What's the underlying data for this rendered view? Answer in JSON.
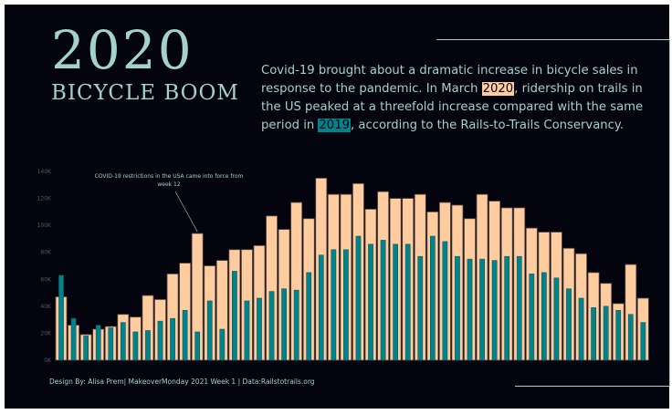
{
  "title": {
    "year": "2020",
    "subtitle": "BICYCLE BOOM"
  },
  "intro": {
    "part1": "Covid-19 brought about a dramatic increase in bicycle sales in response to the pandemic. In March ",
    "highlight1": "2020",
    "part2": ", ridership on trails in the US peaked at a threefold increase compared with the same period in ",
    "highlight2": "2019",
    "part3": ", according to the Rails-to-Trails Conservancy."
  },
  "footer": "Design By: Alisa Prem| MakeoverMonday 2021 Week 1 | Data:Railstotrails.org",
  "colors": {
    "background": "#04040f",
    "text": "#a3d2c8",
    "series_2020": "#ffcc9f",
    "series_2019": "#00838a"
  },
  "chart_data": {
    "type": "bar",
    "ylim": [
      0,
      140000
    ],
    "yticks": [
      0,
      20000,
      40000,
      60000,
      80000,
      100000,
      120000,
      140000
    ],
    "ytick_labels": [
      "0K",
      "20K",
      "40K",
      "60K",
      "80K",
      "100K",
      "120K",
      "140K"
    ],
    "grid": false,
    "annotation": {
      "text_line1": "COVID-19 restrictions in the USA came into force from",
      "text_line2": "week 12",
      "week": 12
    },
    "weeks": [
      1,
      2,
      3,
      4,
      5,
      6,
      7,
      8,
      9,
      10,
      11,
      12,
      13,
      14,
      15,
      16,
      17,
      18,
      19,
      20,
      21,
      22,
      23,
      24,
      25,
      26,
      27,
      28,
      29,
      30,
      31,
      32,
      33,
      34,
      35,
      36,
      37,
      38,
      39,
      40,
      41,
      42,
      43,
      44,
      45,
      46,
      47,
      48
    ],
    "series": [
      {
        "color": "#ffcc9f",
        "values": [
          47000,
          26000,
          19000,
          23000,
          25000,
          34000,
          32000,
          48000,
          45000,
          64000,
          72000,
          94000,
          70000,
          74000,
          82000,
          82000,
          85000,
          107000,
          97000,
          117000,
          105000,
          135000,
          123000,
          123000,
          131000,
          112000,
          125000,
          120000,
          120000,
          123000,
          110000,
          117000,
          115000,
          105000,
          123000,
          118000,
          113000,
          113000,
          98000,
          95000,
          95000,
          83000,
          79000,
          65000,
          57000,
          42000,
          71000,
          46000
        ]
      },
      {
        "color": "#00838a",
        "values": [
          63000,
          31000,
          18000,
          26000,
          24000,
          28000,
          21000,
          22000,
          29000,
          31000,
          37000,
          21000,
          44000,
          23000,
          66000,
          44000,
          46000,
          51000,
          53000,
          52000,
          65000,
          78000,
          82000,
          82000,
          92000,
          86000,
          89000,
          86000,
          86000,
          77000,
          92000,
          88000,
          77000,
          75000,
          75000,
          74000,
          77000,
          77000,
          64000,
          65000,
          61000,
          53000,
          46000,
          39000,
          40000,
          37000,
          34000,
          28000
        ]
      }
    ]
  }
}
